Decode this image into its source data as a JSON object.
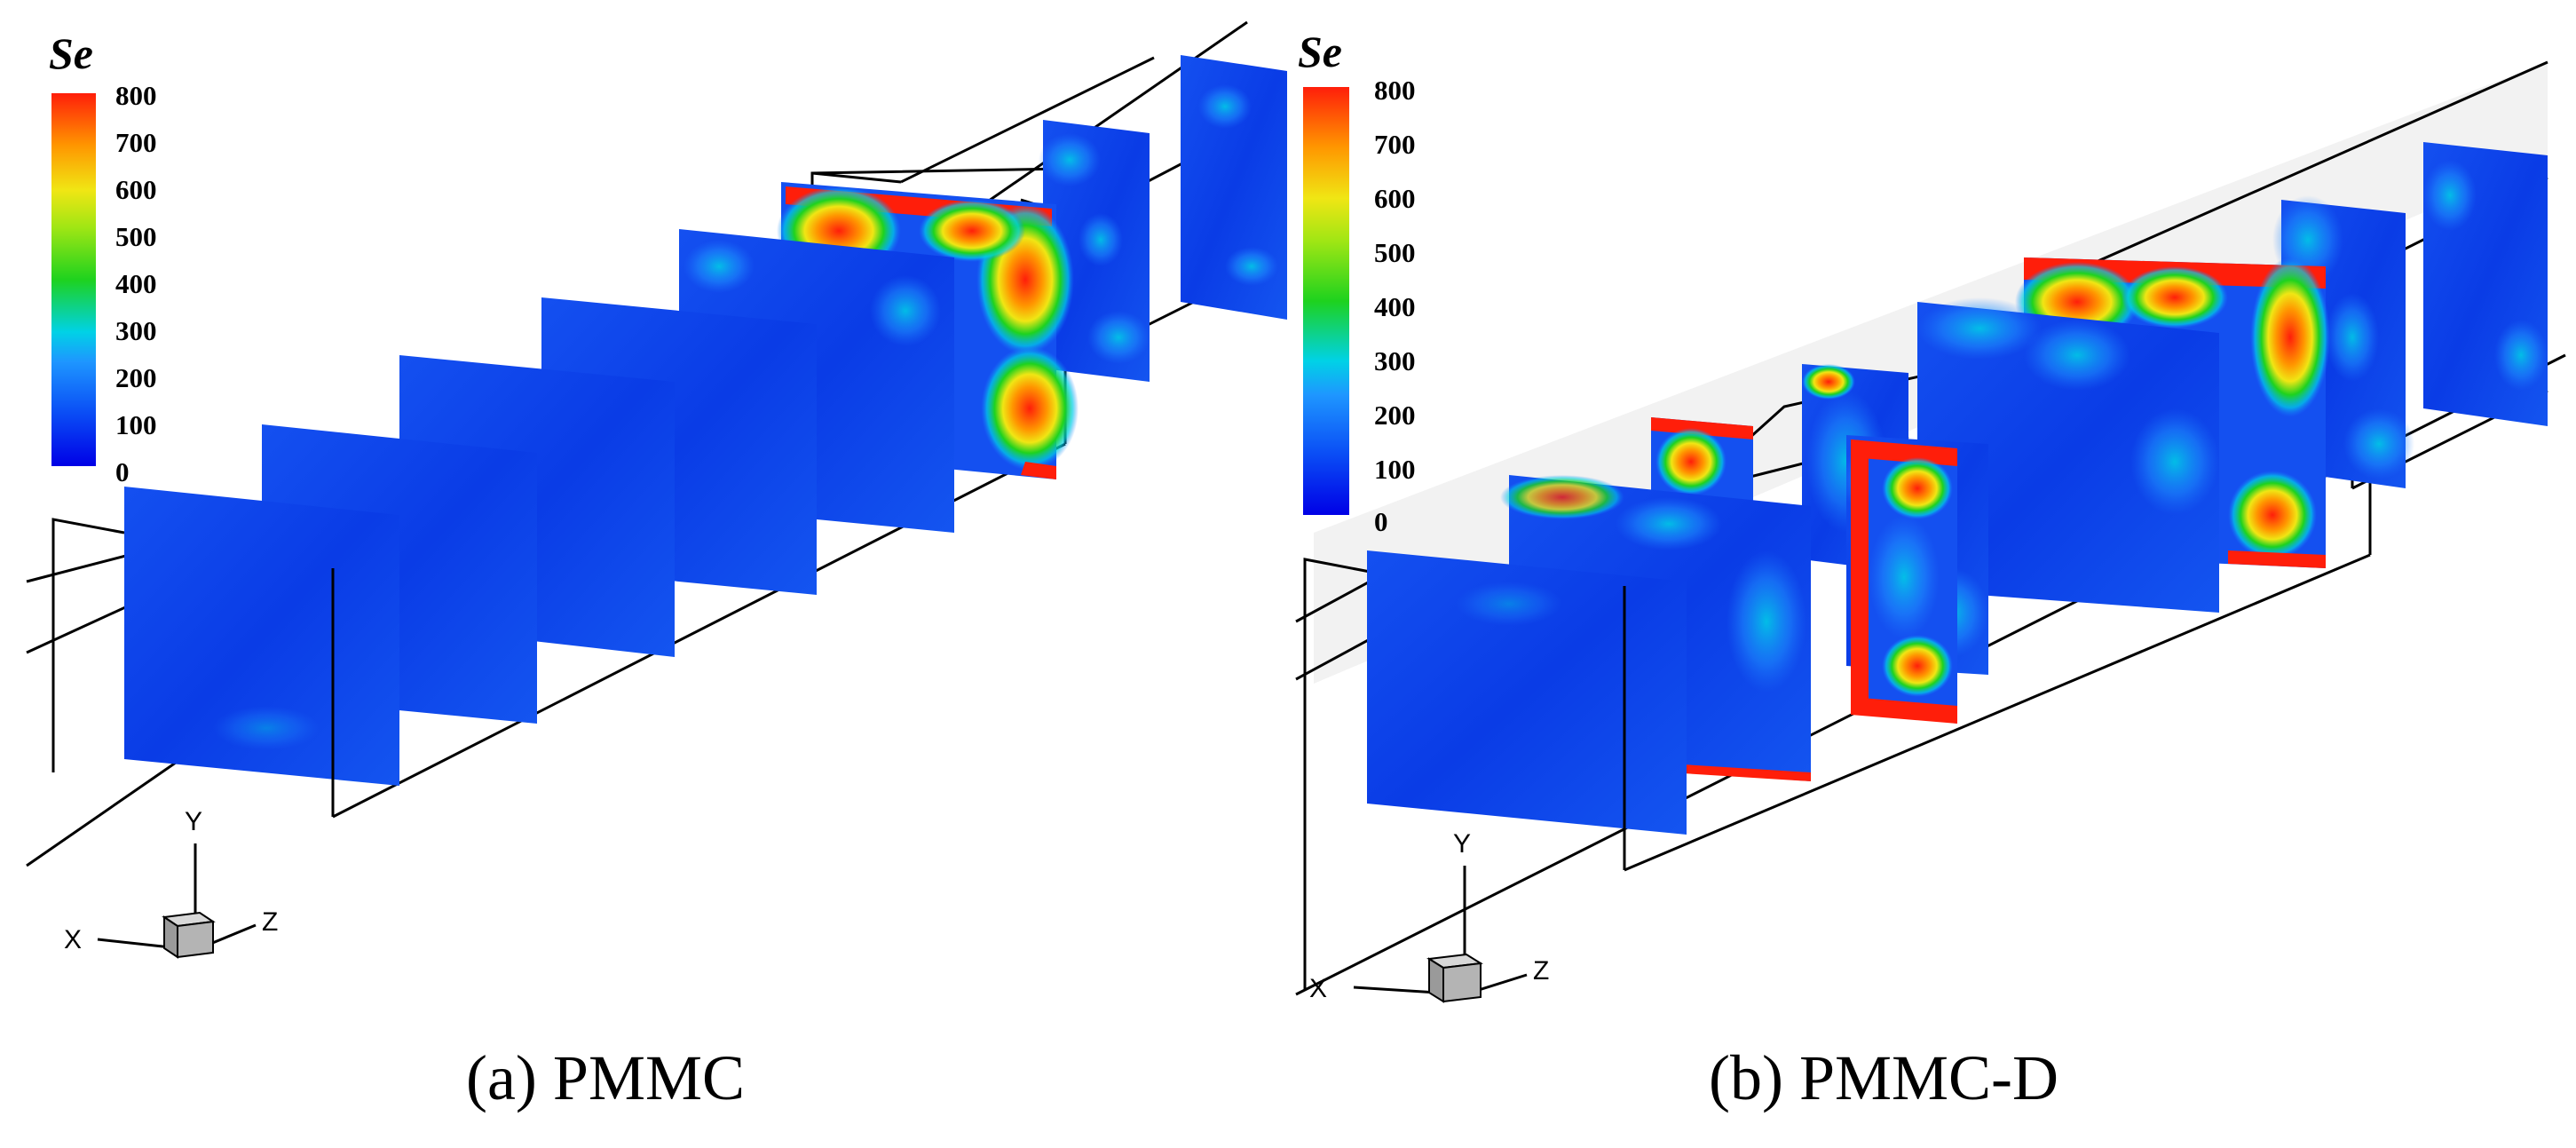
{
  "colorbar_a": {
    "title": "Se",
    "ticks": [
      "800",
      "700",
      "600",
      "500",
      "400",
      "300",
      "200",
      "100",
      "0"
    ]
  },
  "colorbar_b": {
    "title": "Se",
    "ticks": [
      "800",
      "700",
      "600",
      "500",
      "400",
      "300",
      "200",
      "100",
      "0"
    ]
  },
  "axes_a": {
    "x": "X",
    "y": "Y",
    "z": "Z"
  },
  "axes_b": {
    "x": "X",
    "y": "Y",
    "z": "Z"
  },
  "captions": {
    "a": "(a)  PMMC",
    "b": "(b)  PMMC-D"
  },
  "colors": {
    "low": "#0a3cf0",
    "mid_blue": "#1e78ff",
    "cyan": "#00d2e6",
    "green": "#1ed21e",
    "yellow": "#f0e614",
    "orange": "#ff9600",
    "high": "#ff1e0a"
  }
}
